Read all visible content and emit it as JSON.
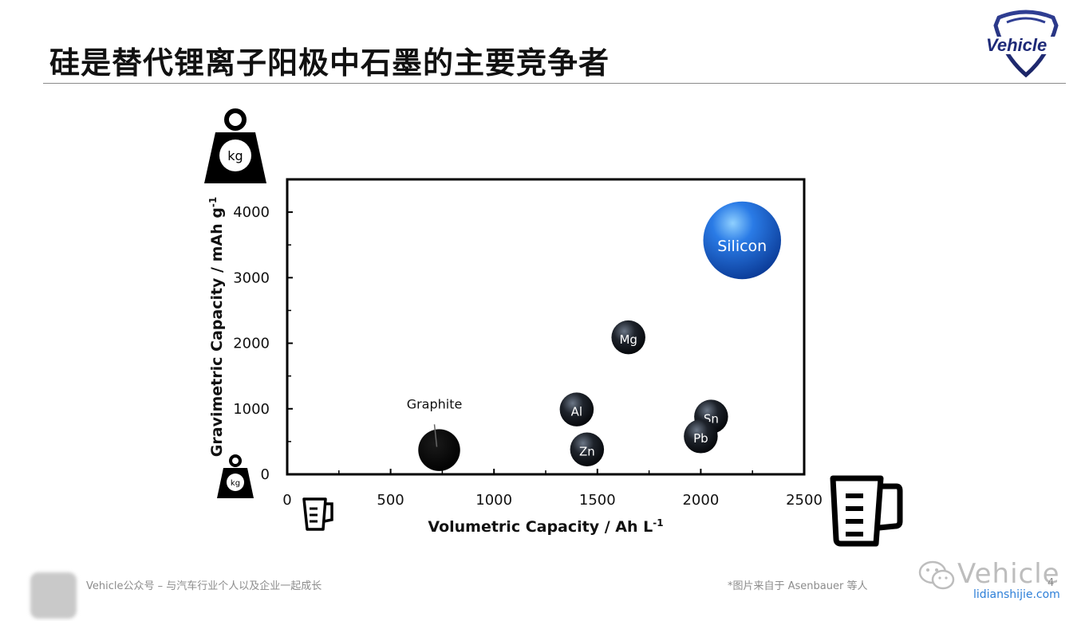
{
  "slide": {
    "title": "硅是替代锂离子阳极中石墨的主要竞争者",
    "logo_text": "Vehicle"
  },
  "footer": {
    "left_text": "Vehicle公众号 – 与汽车行业个人以及企业一起成长",
    "source_note": "*图片来自于 Asenbauer 等人",
    "page_number": "4",
    "watermark_name": "Vehicle",
    "watermark_url": "lidianshijie.com"
  },
  "icons": {
    "weight_large": "kg-weight-icon",
    "weight_small": "kg-weight-icon",
    "beaker_small": "measuring-cup-icon",
    "beaker_large": "measuring-cup-icon",
    "weight_label": "kg"
  },
  "chart_data": {
    "type": "scatter",
    "title": "",
    "xlabel": "Volumetric Capacity / Ah L",
    "xlabel_sup": "-1",
    "ylabel": "Gravimetric Capacity / mAh g",
    "ylabel_sup": "-1",
    "xlim": [
      0,
      2500
    ],
    "ylim": [
      0,
      4500
    ],
    "x_ticks": [
      0,
      500,
      1000,
      1500,
      2000,
      2500
    ],
    "x_tick_labels": [
      "0",
      "500",
      "1000",
      "1500",
      "2000",
      "2500"
    ],
    "y_ticks": [
      0,
      1000,
      2000,
      3000,
      4000
    ],
    "y_tick_labels": [
      "0",
      "1000",
      "2000",
      "3000",
      "4000"
    ],
    "grid": false,
    "points": [
      {
        "label": "",
        "callout": "Graphite",
        "x": 735,
        "y": 370,
        "size": 1.05,
        "color": "#050505"
      },
      {
        "label": "Al",
        "x": 1400,
        "y": 990,
        "size": 0.85,
        "color": "#1a1e24"
      },
      {
        "label": "Zn",
        "x": 1450,
        "y": 380,
        "size": 0.85,
        "color": "#1a1e24"
      },
      {
        "label": "Mg",
        "x": 1650,
        "y": 2090,
        "size": 0.85,
        "color": "#1a1e24"
      },
      {
        "label": "Sn",
        "x": 2050,
        "y": 880,
        "size": 0.85,
        "color": "#1a1e24"
      },
      {
        "label": "Pb",
        "x": 2000,
        "y": 580,
        "size": 0.85,
        "color": "#1a1e24"
      },
      {
        "label": "Silicon",
        "x": 2200,
        "y": 3570,
        "size": 1.95,
        "color": "#1d63d6"
      }
    ]
  }
}
